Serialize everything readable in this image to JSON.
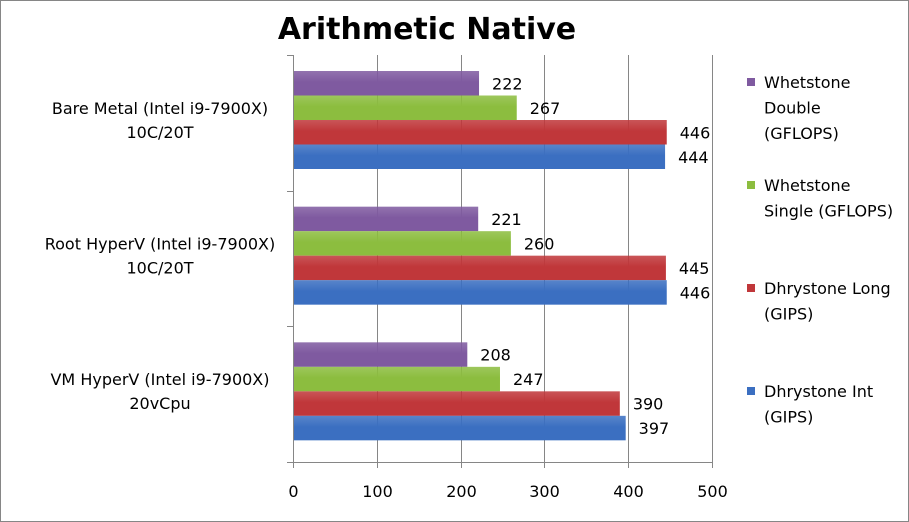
{
  "chart_data": {
    "type": "bar",
    "orientation": "horizontal",
    "title": "Arithmetic Native",
    "xlabel": "",
    "ylabel": "",
    "xlim": [
      0,
      500
    ],
    "ticks": [
      "0",
      "100",
      "200",
      "300",
      "400",
      "500"
    ],
    "grid": "vertical",
    "legend_position": "right",
    "categories": [
      {
        "lines": [
          "Bare Metal (Intel i9-7900X)",
          "10C/20T"
        ]
      },
      {
        "lines": [
          "Root HyperV (Intel i9-7900X)",
          "10C/20T"
        ]
      },
      {
        "lines": [
          "VM HyperV (Intel i9-7900X)",
          "20vCpu"
        ]
      }
    ],
    "series": [
      {
        "name": "Whetstone Double (GFLOPS)",
        "legend_lines": [
          "Whetstone",
          "Double",
          "(GFLOPS)"
        ],
        "color": "#7F5AA0",
        "values": [
          222,
          221,
          208
        ]
      },
      {
        "name": "Whetstone Single (GFLOPS)",
        "legend_lines": [
          "Whetstone",
          "Single (GFLOPS)"
        ],
        "color": "#8CBD3F",
        "values": [
          267,
          260,
          247
        ]
      },
      {
        "name": "Dhrystone Long (GIPS)",
        "legend_lines": [
          "Dhrystone Long",
          "(GIPS)"
        ],
        "color": "#C0373A",
        "values": [
          446,
          445,
          390
        ]
      },
      {
        "name": "Dhrystone Int (GIPS)",
        "legend_lines": [
          "Dhrystone Int",
          "(GIPS)"
        ],
        "color": "#3B6FC1",
        "values": [
          444,
          446,
          397
        ]
      }
    ]
  }
}
